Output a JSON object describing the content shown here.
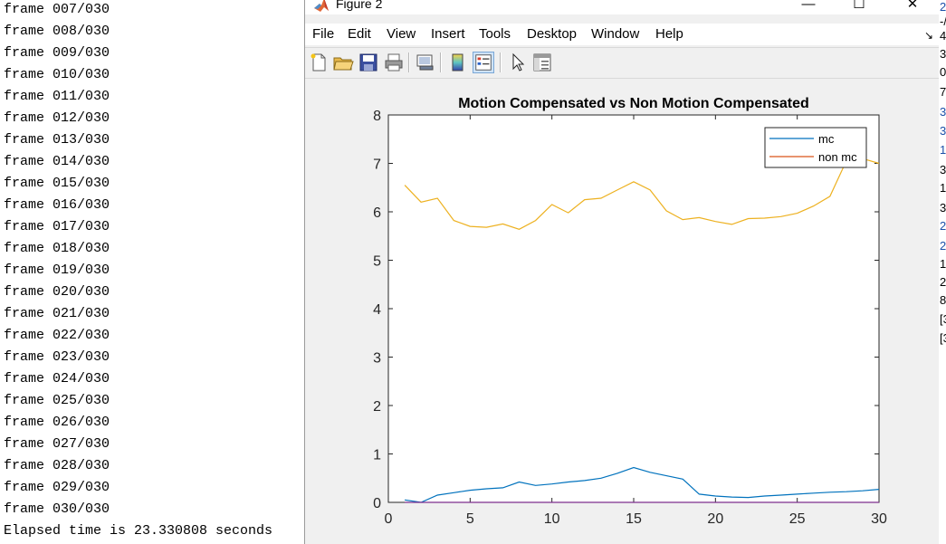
{
  "console": {
    "lines": [
      "frame 007/030",
      "frame 008/030",
      "frame 009/030",
      "frame 010/030",
      "frame 011/030",
      "frame 012/030",
      "frame 013/030",
      "frame 014/030",
      "frame 015/030",
      "frame 016/030",
      "frame 017/030",
      "frame 018/030",
      "frame 019/030",
      "frame 020/030",
      "frame 021/030",
      "frame 022/030",
      "frame 023/030",
      "frame 024/030",
      "frame 025/030",
      "frame 026/030",
      "frame 027/030",
      "frame 028/030",
      "frame 029/030",
      "frame 030/030",
      "Elapsed time is 23.330808 seconds"
    ]
  },
  "side_strip": {
    "chars": [
      "2",
      "-/",
      "4",
      "3",
      "0",
      "7",
      "3",
      "3",
      "1.",
      "3",
      "1(",
      "3",
      "2",
      "2",
      "1",
      "2",
      "8",
      "[3",
      "[3"
    ]
  },
  "window": {
    "title": "Figure 2",
    "minimize": "—",
    "maximize": "☐",
    "close": "✕"
  },
  "menu": [
    "File",
    "Edit",
    "View",
    "Insert",
    "Tools",
    "Desktop",
    "Window",
    "Help"
  ],
  "toolbar": {
    "icons": [
      "new-figure-icon",
      "open-file-icon",
      "save-icon",
      "print-icon",
      "link-plot-icon",
      "insert-colorbar-icon",
      "insert-legend-icon",
      "edit-plot-cursor-icon",
      "property-inspector-icon"
    ]
  },
  "colors": {
    "mc": "#0072bd",
    "non_mc": "#d95319",
    "non_mc_drawn": "#edb120"
  },
  "chart_data": {
    "type": "line",
    "title": "Motion Compensated vs Non Motion Compensated",
    "xlabel": "",
    "ylabel": "",
    "xlim": [
      0,
      30
    ],
    "ylim": [
      0,
      8
    ],
    "xticks": [
      0,
      5,
      10,
      15,
      20,
      25,
      30
    ],
    "yticks": [
      0,
      1,
      2,
      3,
      4,
      5,
      6,
      7,
      8
    ],
    "grid": false,
    "legend_position": "top-right",
    "legend": [
      "mc",
      "non mc"
    ],
    "series": [
      {
        "name": "mc",
        "x": [
          1,
          2,
          3,
          4,
          5,
          6,
          7,
          8,
          9,
          10,
          11,
          12,
          13,
          14,
          15,
          16,
          17,
          18,
          19,
          20,
          21,
          22,
          23,
          24,
          25,
          26,
          27,
          28,
          29,
          30
        ],
        "values": [
          0.05,
          0.0,
          0.15,
          0.2,
          0.25,
          0.28,
          0.3,
          0.42,
          0.35,
          0.38,
          0.42,
          0.45,
          0.5,
          0.6,
          0.72,
          0.62,
          0.55,
          0.48,
          0.17,
          0.13,
          0.11,
          0.1,
          0.13,
          0.15,
          0.17,
          0.19,
          0.21,
          0.22,
          0.24,
          0.27
        ]
      },
      {
        "name": "non mc",
        "x": [
          1,
          2,
          3,
          4,
          5,
          6,
          7,
          8,
          9,
          10,
          11,
          12,
          13,
          14,
          15,
          16,
          17,
          18,
          19,
          20,
          21,
          22,
          23,
          24,
          25,
          26,
          27,
          28,
          29,
          30
        ],
        "values": [
          6.55,
          6.2,
          6.28,
          5.82,
          5.7,
          5.68,
          5.75,
          5.64,
          5.82,
          6.15,
          5.98,
          6.25,
          6.28,
          6.45,
          6.62,
          6.45,
          6.02,
          5.84,
          5.88,
          5.8,
          5.74,
          5.86,
          5.87,
          5.9,
          5.97,
          6.12,
          6.32,
          7.05,
          7.1,
          7.0
        ]
      },
      {
        "name": "",
        "x": [
          1,
          30
        ],
        "values": [
          0,
          0
        ]
      }
    ]
  }
}
